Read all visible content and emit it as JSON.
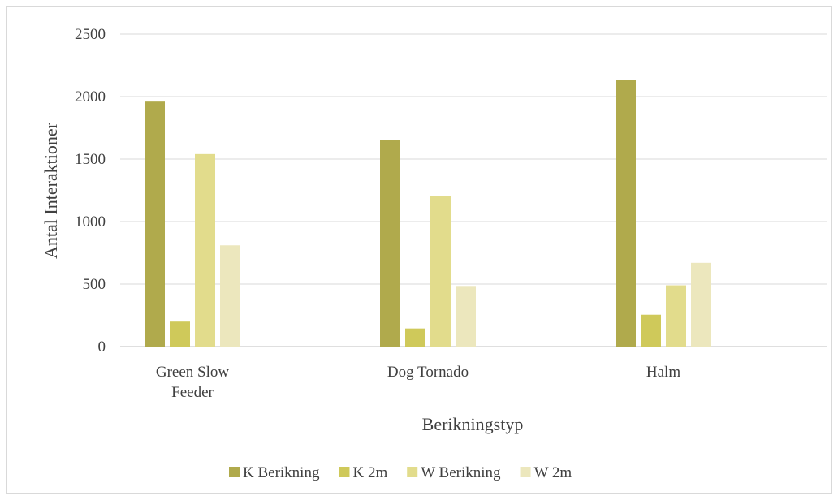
{
  "chart_data": {
    "type": "bar",
    "title": "",
    "xlabel": "Berikningstyp",
    "ylabel": "Antal Interaktioner",
    "categories": [
      "Green Slow Feeder",
      "Dog Tornado",
      "Halm"
    ],
    "category_label_lines": [
      [
        "Green Slow",
        "Feeder"
      ],
      [
        "Dog Tornado"
      ],
      [
        "Halm"
      ]
    ],
    "series": [
      {
        "name": "K Berikning",
        "color": "#b0aa4c",
        "values": [
          1960,
          1650,
          2135
        ]
      },
      {
        "name": "K 2m",
        "color": "#cfc95a",
        "values": [
          200,
          145,
          255
        ]
      },
      {
        "name": "W Berikning",
        "color": "#e2dc8c",
        "values": [
          1540,
          1205,
          490
        ]
      },
      {
        "name": "W 2m",
        "color": "#ece7bd",
        "values": [
          810,
          485,
          670
        ]
      }
    ],
    "ylim": [
      0,
      2500
    ],
    "yticks": [
      0,
      500,
      1000,
      1500,
      2000,
      2500
    ],
    "grid": true,
    "legend_position": "bottom",
    "colors": {
      "gridline": "#d9d9d9",
      "axis_line": "#bfbfbf",
      "text": "#404040"
    }
  }
}
